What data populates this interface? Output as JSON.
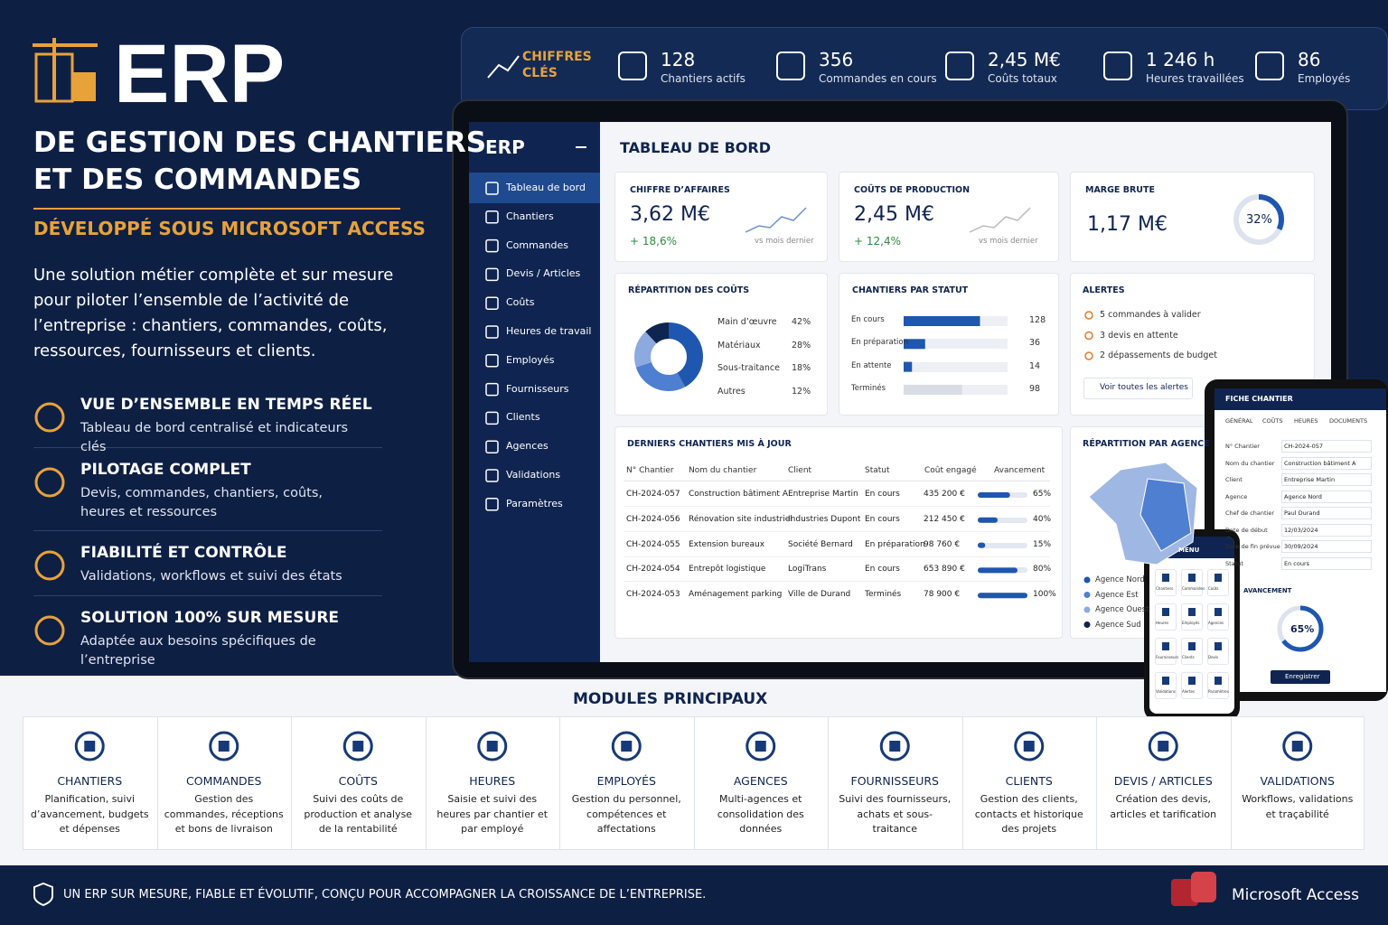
{
  "header": {
    "logo": "ERP",
    "title_line1": "DE GESTION DES CHANTIERS",
    "title_line2": "ET DES COMMANDES",
    "subtitle": "DÉVELOPPÉ SOUS MICROSOFT ACCESS",
    "description": "Une solution métier complète et sur mesure pour piloter l’ensemble de l’activité de l’entreprise : chantiers, commandes, coûts, ressources, fournisseurs et clients."
  },
  "features": [
    {
      "title": "VUE D’ENSEMBLE EN TEMPS RÉEL",
      "text": "Tableau de bord centralisé et indicateurs clés"
    },
    {
      "title": "PILOTAGE COMPLET",
      "text": "Devis, commandes, chantiers, coûts, heures et ressources"
    },
    {
      "title": "FIABILITÉ ET CONTRÔLE",
      "text": "Validations, workflows et suivi des états"
    },
    {
      "title": "SOLUTION 100% SUR MESURE",
      "text": "Adaptée aux besoins spécifiques de l’entreprise"
    }
  ],
  "kpi_bar": {
    "label": "CHIFFRES CLÉS",
    "items": [
      {
        "value": "128",
        "label": "Chantiers actifs"
      },
      {
        "value": "356",
        "label": "Commandes en cours"
      },
      {
        "value": "2,45 M€",
        "label": "Coûts totaux"
      },
      {
        "value": "1 246 h",
        "label": "Heures travaillées"
      },
      {
        "value": "86",
        "label": "Employés"
      }
    ]
  },
  "app": {
    "logo": "ERP",
    "menu": [
      "Tableau de bord",
      "Chantiers",
      "Commandes",
      "Devis / Articles",
      "Coûts",
      "Heures de travail",
      "Employés",
      "Fournisseurs",
      "Clients",
      "Agences",
      "Validations",
      "Paramètres"
    ],
    "page_title": "TABLEAU DE BORD",
    "cards": [
      {
        "title": "CHIFFRE D’AFFAIRES",
        "value": "3,62 M€",
        "change": "+ 18,6%",
        "note": "vs mois dernier"
      },
      {
        "title": "COÛTS DE PRODUCTION",
        "value": "2,45 M€",
        "change": "+ 12,4%",
        "note": "vs mois dernier"
      }
    ],
    "margin": {
      "title": "MARGE BRUTE",
      "value": "1,17 M€",
      "percent": {
        "value": 32,
        "label": "32%"
      }
    },
    "cost_split": {
      "title": "RÉPARTITION DES COÛTS",
      "items": [
        {
          "name": "Main d’œuvre",
          "value": 42,
          "label": "42%"
        },
        {
          "name": "Matériaux",
          "value": 28,
          "label": "28%"
        },
        {
          "name": "Sous-traitance",
          "value": 18,
          "label": "18%"
        },
        {
          "name": "Autres",
          "value": 12,
          "label": "12%"
        }
      ]
    },
    "status": {
      "title": "CHANTIERS PAR STATUT",
      "items": [
        {
          "name": "En cours",
          "value": 128
        },
        {
          "name": "En préparation",
          "value": 36
        },
        {
          "name": "En attente",
          "value": 14
        },
        {
          "name": "Terminés",
          "value": 98
        }
      ]
    },
    "alerts": {
      "title": "ALERTES",
      "items": [
        "5 commandes à valider",
        "3 devis en attente",
        "2 dépassements de budget"
      ],
      "button": "Voir toutes les alertes"
    },
    "table": {
      "title": "DERNIERS CHANTIERS MIS À JOUR",
      "columns": [
        "N° Chantier",
        "Nom du chantier",
        "Client",
        "Statut",
        "Coût engagé",
        "Avancement"
      ],
      "rows": [
        [
          "CH-2024-057",
          "Construction bâtiment A",
          "Entreprise Martin",
          "En cours",
          "435 200 €",
          {
            "value": 65,
            "label": "65%"
          }
        ],
        [
          "CH-2024-056",
          "Rénovation site industriel",
          "Industries Dupont",
          "En cours",
          "212 450 €",
          {
            "value": 40,
            "label": "40%"
          }
        ],
        [
          "CH-2024-055",
          "Extension bureaux",
          "Société Bernard",
          "En préparation",
          "98 760 €",
          {
            "value": 15,
            "label": "15%"
          }
        ],
        [
          "CH-2024-054",
          "Entrepôt logistique",
          "LogiTrans",
          "En cours",
          "653 890 €",
          {
            "value": 80,
            "label": "80%"
          }
        ],
        [
          "CH-2024-053",
          "Aménagement parking",
          "Ville de Durand",
          "Terminés",
          "78 900 €",
          {
            "value": 100,
            "label": "100%"
          }
        ]
      ]
    },
    "region": {
      "title": "RÉPARTITION PAR AGENCE",
      "legend": [
        "Agence Nord",
        "Agence Est",
        "Agence Ouest",
        "Agence Sud"
      ]
    }
  },
  "tablet": {
    "title": "FICHE CHANTIER",
    "tabs": [
      "GÉNÉRAL",
      "COÛTS",
      "HEURES",
      "DOCUMENTS"
    ],
    "fields": [
      [
        "N° Chantier",
        "CH-2024-057"
      ],
      [
        "Nom du chantier",
        "Construction bâtiment A"
      ],
      [
        "Client",
        "Entreprise Martin"
      ],
      [
        "Agence",
        "Agence Nord"
      ],
      [
        "Chef de chantier",
        "Paul Durand"
      ],
      [
        "Date de début",
        "12/03/2024"
      ],
      [
        "Date de fin prévue",
        "30/09/2024"
      ],
      [
        "Statut",
        "En cours"
      ]
    ],
    "progress_title": "AVANCEMENT",
    "progress": {
      "value": 65,
      "label": "65%"
    },
    "button": "Enregistrer"
  },
  "phone": {
    "title": "MENU",
    "items": [
      "Chantiers",
      "Commandes",
      "Coûts",
      "Heures",
      "Employés",
      "Agences",
      "Fournisseurs",
      "Clients",
      "Devis",
      "Validations",
      "Alertes",
      "Paramètres"
    ]
  },
  "modules": {
    "title": "MODULES PRINCIPAUX",
    "items": [
      {
        "name": "CHANTIERS",
        "desc": "Planification, suivi d’avancement, budgets et dépenses"
      },
      {
        "name": "COMMANDES",
        "desc": "Gestion des commandes, réceptions et bons de livraison"
      },
      {
        "name": "COÛTS",
        "desc": "Suivi des coûts de production et analyse de la rentabilité"
      },
      {
        "name": "HEURES",
        "desc": "Saisie et suivi des heures par chantier et par employé"
      },
      {
        "name": "EMPLOYÉS",
        "desc": "Gestion du personnel, compétences et affectations"
      },
      {
        "name": "AGENCES",
        "desc": "Multi-agences et consolidation des données"
      },
      {
        "name": "FOURNISSEURS",
        "desc": "Suivi des fournisseurs, achats et sous-traitance"
      },
      {
        "name": "CLIENTS",
        "desc": "Gestion des clients, contacts et historique des projets"
      },
      {
        "name": "DEVIS / ARTICLES",
        "desc": "Création des devis, articles et tarification"
      },
      {
        "name": "VALIDATIONS",
        "desc": "Workflows, validations et traçabilité"
      }
    ]
  },
  "footer": {
    "text": "UN ERP SUR MESURE, FIABLE ET ÉVOLUTIF, CONÇU POUR ACCOMPAGNER LA CROISSANCE DE L’ENTREPRISE.",
    "brand": "Microsoft Access"
  }
}
